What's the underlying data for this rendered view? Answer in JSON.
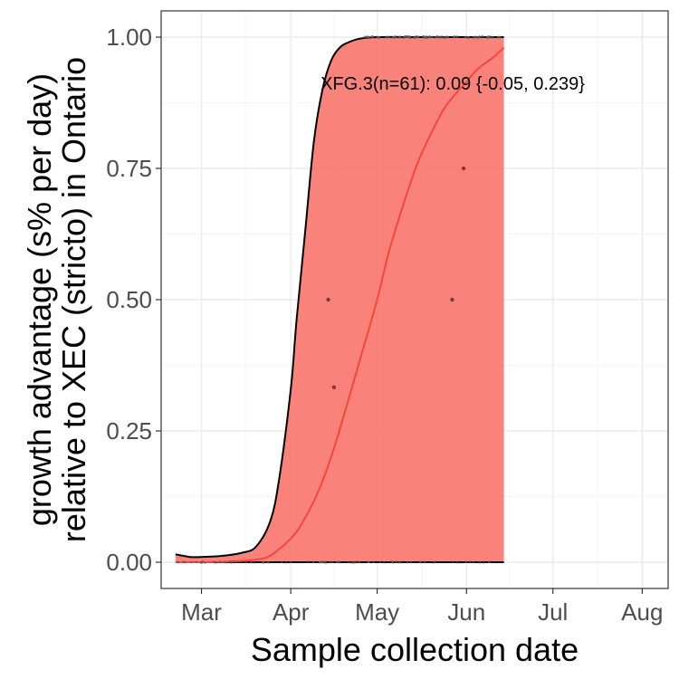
{
  "chart_data": {
    "type": "line",
    "xlabel": "Sample collection date",
    "ylabel_line1": "growth advantage (s% per day)",
    "ylabel_line2": "relative to XEC (stricto) in Ontario",
    "x_ticks": [
      {
        "label": "Mar",
        "date": "2025-03-01"
      },
      {
        "label": "Apr",
        "date": "2025-04-01"
      },
      {
        "label": "May",
        "date": "2025-05-01"
      },
      {
        "label": "Jun",
        "date": "2025-06-01"
      },
      {
        "label": "Jul",
        "date": "2025-07-01"
      },
      {
        "label": "Aug",
        "date": "2025-08-01"
      }
    ],
    "x_range": [
      "2025-02-15",
      "2025-08-10"
    ],
    "y_ticks": [
      {
        "label": "0.00",
        "value": 0.0
      },
      {
        "label": "0.25",
        "value": 0.25
      },
      {
        "label": "0.50",
        "value": 0.5
      },
      {
        "label": "0.75",
        "value": 0.75
      },
      {
        "label": "1.00",
        "value": 1.0
      }
    ],
    "ylim": [
      -0.05,
      1.05
    ],
    "grid": true,
    "annotation": "XFG.3(n=61): 0.09 {-0.05, 0.239}",
    "series": [
      {
        "role": "fit",
        "color": "#f8766d",
        "x": [
          "2025-02-20",
          "2025-03-01",
          "2025-03-10",
          "2025-03-20",
          "2025-03-25",
          "2025-04-01",
          "2025-04-05",
          "2025-04-10",
          "2025-04-15",
          "2025-04-20",
          "2025-04-25",
          "2025-05-01",
          "2025-05-05",
          "2025-05-10",
          "2025-05-15",
          "2025-05-20",
          "2025-05-25",
          "2025-06-01",
          "2025-06-05",
          "2025-06-10",
          "2025-06-14"
        ],
        "y": [
          0.0,
          0.0,
          0.001,
          0.005,
          0.013,
          0.045,
          0.075,
          0.128,
          0.2,
          0.29,
          0.385,
          0.5,
          0.59,
          0.68,
          0.76,
          0.82,
          0.87,
          0.915,
          0.94,
          0.96,
          0.98
        ]
      },
      {
        "role": "ci_upper",
        "color": "#000000",
        "x": [
          "2025-02-20",
          "2025-02-25",
          "2025-03-01",
          "2025-03-08",
          "2025-03-15",
          "2025-03-20",
          "2025-03-25",
          "2025-03-28",
          "2025-04-01",
          "2025-04-03",
          "2025-04-06",
          "2025-04-09",
          "2025-04-12",
          "2025-04-15",
          "2025-04-18",
          "2025-04-21",
          "2025-04-25",
          "2025-05-01",
          "2025-05-15",
          "2025-06-14"
        ],
        "y": [
          0.015,
          0.01,
          0.01,
          0.012,
          0.018,
          0.03,
          0.08,
          0.16,
          0.33,
          0.46,
          0.63,
          0.8,
          0.9,
          0.955,
          0.98,
          0.99,
          0.997,
          1.0,
          1.0,
          1.0
        ]
      },
      {
        "role": "ci_lower",
        "color": "#000000",
        "x": [
          "2025-02-20",
          "2025-06-14"
        ],
        "y": [
          0.0,
          0.0
        ]
      }
    ],
    "points": {
      "color": "#7f3a33",
      "x": [
        "2025-04-14",
        "2025-04-16",
        "2025-05-27",
        "2025-05-31"
      ],
      "y": [
        0.5,
        0.333,
        0.5,
        0.75
      ]
    },
    "jitter_points_color": "#555555"
  }
}
